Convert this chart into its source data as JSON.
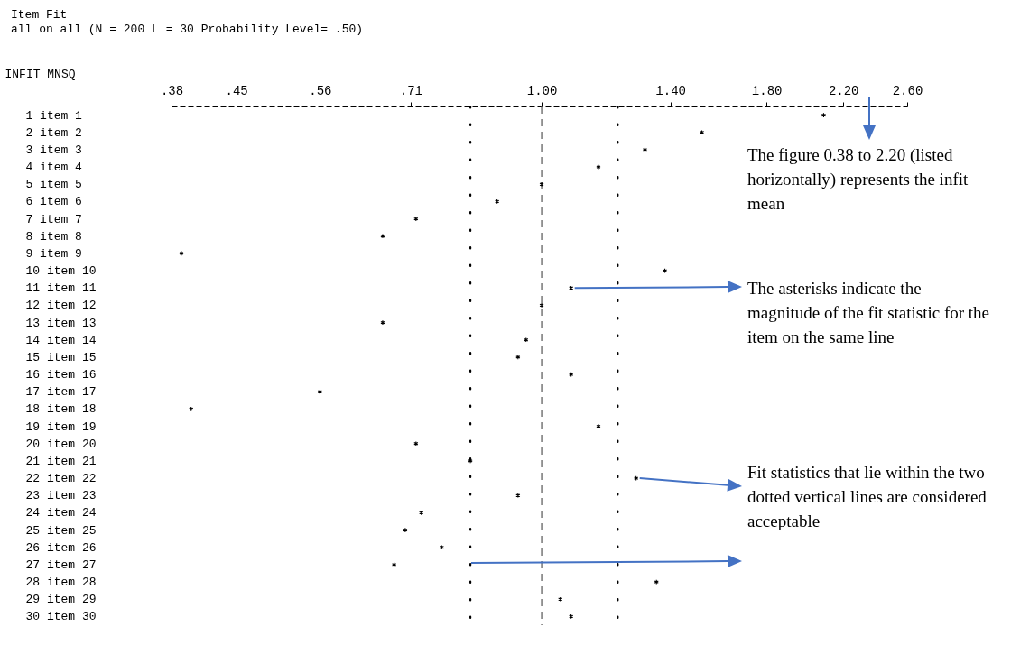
{
  "chart_data": {
    "type": "scatter",
    "title": "Item Fit",
    "subtitle": "all on all (N = 200 L = 30 Probability Level= .50)",
    "xlabel": "INFIT MNSQ",
    "categories": [
      "1 item 1",
      "2 item 2",
      "3 item 3",
      "4 item 4",
      "5 item 5",
      "6 item 6",
      "7 item 7",
      "8 item 8",
      "9 item 9",
      "10 item 10",
      "11 item 11",
      "12 item 12",
      "13 item 13",
      "14 item 14",
      "15 item 15",
      "16 item 16",
      "17 item 17",
      "18 item 18",
      "19 item 19",
      "20 item 20",
      "21 item 21",
      "22 item 22",
      "23 item 23",
      "24 item 24",
      "25 item 25",
      "26 item 26",
      "27 item 27",
      "28 item 28",
      "29 item 29",
      "30 item 30"
    ],
    "orientation": "horizontal",
    "log": "x",
    "series": [
      {
        "color": "#000000",
        "values": [
          2.09,
          1.52,
          1.31,
          1.16,
          1.0,
          0.89,
          0.72,
          0.66,
          0.39,
          1.38,
          1.08,
          1.0,
          0.66,
          0.96,
          0.94,
          1.08,
          0.56,
          0.4,
          1.16,
          0.72,
          0.83,
          1.28,
          0.94,
          0.73,
          0.7,
          0.77,
          0.68,
          1.35,
          1.05,
          1.08
        ]
      }
    ],
    "marker": "cross",
    "xlim": [
      0.38,
      2.6
    ],
    "xticks": [
      {
        "value": 0.38,
        "label": ".38"
      },
      {
        "value": 0.45,
        "label": ".45"
      },
      {
        "value": 0.56,
        "label": ".56"
      },
      {
        "value": 0.71,
        "label": ".71"
      },
      {
        "value": 1.0,
        "label": "1.00"
      },
      {
        "value": 1.4,
        "label": "1.40"
      },
      {
        "value": 1.8,
        "label": "1.80"
      },
      {
        "value": 2.2,
        "label": "2.20"
      },
      {
        "value": 2.6,
        "label": "2.60"
      }
    ],
    "ref_lines": [
      {
        "axis": "x",
        "value": 1.0,
        "line_style": "dashed",
        "color": "#555555"
      },
      {
        "axis": "x",
        "value": 0.83,
        "line_style": "dotted",
        "color": "#000000"
      },
      {
        "axis": "x",
        "value": 1.22,
        "line_style": "dotted",
        "color": "#000000"
      }
    ],
    "grid": false,
    "annotations": [
      "The figure 0.38 to 2.20 (listed horizontally) represents the infit mean",
      {
        "text": "The asterisks indicate the magnitude of the fit statistic for the item on the same line",
        "x": 1.08,
        "y": "11 item 11"
      },
      {
        "text": "Fit statistics that lie within the two dotted vertical lines are considered acceptable",
        "x": 1.28,
        "y": "22 item 22"
      }
    ]
  }
}
